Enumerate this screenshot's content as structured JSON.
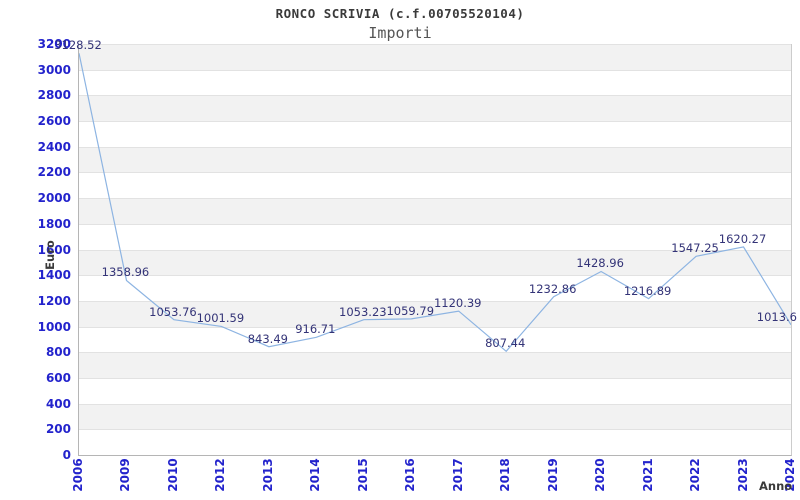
{
  "chart_data": {
    "type": "line",
    "title": "RONCO SCRIVIA (c.f.00705520104)",
    "subtitle": "Importi",
    "ylabel": "Euro",
    "xlabel": "Anno",
    "categories": [
      "2006",
      "2009",
      "2010",
      "2012",
      "2013",
      "2014",
      "2015",
      "2016",
      "2017",
      "2018",
      "2019",
      "2020",
      "2021",
      "2022",
      "2023",
      "2024"
    ],
    "values": [
      3128.52,
      1358.96,
      1053.76,
      1001.59,
      843.49,
      916.71,
      1053.23,
      1059.79,
      1120.39,
      807.44,
      1232.86,
      1428.96,
      1216.89,
      1547.25,
      1620.27,
      1013.6
    ],
    "point_labels": [
      "3128.52",
      "1358.96",
      "1053.76",
      "1001.59",
      "843.49",
      "916.71",
      "1053.23",
      "1059.79",
      "1120.39",
      "807.44",
      "1232.86",
      "1428.96",
      "1216.89",
      "1547.25",
      "1620.27",
      "1013.6"
    ],
    "ylim": [
      0,
      3200
    ],
    "ytick_step": 200,
    "grid": true,
    "legend_position": "none",
    "colors": {
      "line": "#8db4e2",
      "tick_label": "#2323cc",
      "point_label": "#333377",
      "band": "#f2f2f2",
      "gridline": "#e2e2e2",
      "title": "#3a3a3a",
      "subtitle": "#555555",
      "axis_title": "#3a3a3a"
    }
  }
}
